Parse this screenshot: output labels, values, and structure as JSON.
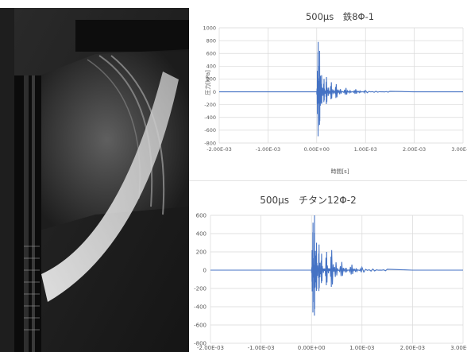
{
  "photo": {
    "description_icon": "schlieren-photo-icon"
  },
  "chart_data": [
    {
      "type": "line",
      "title": "500μs　鉄8Φ-1",
      "xlabel": "時間[s]",
      "ylabel": "圧力[kPa]",
      "xlim": [
        -0.002,
        0.003
      ],
      "ylim": [
        -800,
        1000
      ],
      "x_ticks": [
        "-2.00E-03",
        "-1.00E-03",
        "0.00E+00",
        "1.00E-03",
        "2.00E-03",
        "3.00E-03"
      ],
      "y_ticks": [
        "1000",
        "800",
        "600",
        "400",
        "200",
        "0",
        "-200",
        "-400",
        "-600",
        "-800"
      ],
      "grid": true,
      "series": [
        {
          "color": "#4472c4",
          "x": [
            -0.002,
            -0.001,
            0.0,
            3e-05,
            6e-05,
            0.0001,
            0.00015,
            0.0002,
            0.0003,
            0.0004,
            0.0006,
            0.0008,
            0.001,
            0.0015,
            0.002,
            0.003
          ],
          "y": [
            0,
            0,
            0,
            780,
            -640,
            260,
            -200,
            230,
            -150,
            120,
            -60,
            40,
            -20,
            8,
            0,
            0
          ]
        }
      ]
    },
    {
      "type": "line",
      "title": "500μs　チタン12Φ-2",
      "xlabel": "",
      "ylabel": "",
      "xlim": [
        -0.002,
        0.003
      ],
      "ylim": [
        -800,
        600
      ],
      "x_ticks": [
        "-2.00E-03",
        "-1.00E-03",
        "0.00E+00",
        "1.00E-03",
        "2.00E-03",
        "3.00E-03"
      ],
      "y_ticks": [
        "600",
        "400",
        "200",
        "0",
        "-200",
        "-400",
        "-600",
        "-800"
      ],
      "grid": true,
      "series": [
        {
          "color": "#4472c4",
          "x": [
            -0.002,
            -0.001,
            0.0,
            3e-05,
            6e-05,
            0.0001,
            0.00015,
            0.0002,
            0.0003,
            0.0004,
            0.0006,
            0.0008,
            0.001,
            0.0015,
            0.002,
            0.003
          ],
          "y": [
            0,
            0,
            0,
            520,
            -600,
            300,
            -280,
            180,
            -200,
            220,
            -90,
            60,
            -30,
            10,
            0,
            0
          ]
        }
      ]
    }
  ]
}
